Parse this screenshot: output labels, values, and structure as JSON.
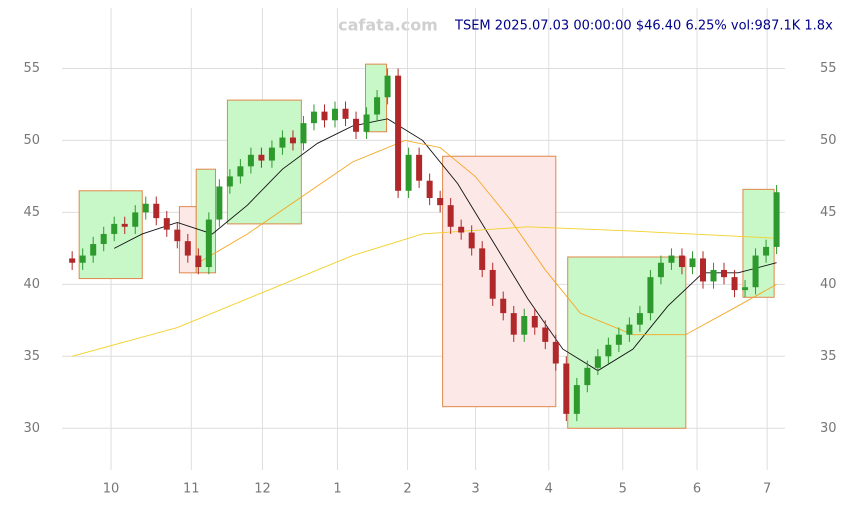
{
  "chart_data": {
    "type": "candlestick",
    "title": "TSEM 2025.07.03 00:00:00 $46.40 6.25% vol:987.1K 1.8x",
    "watermark": "cafata.com",
    "up_color": "#2e9a2e",
    "down_color": "#b0282a",
    "xlim": [
      -2.9,
      203.4
    ],
    "ylim": [
      27.1,
      59.2
    ],
    "grid": true,
    "xticks": [
      {
        "value": 11.1,
        "label": "10"
      },
      {
        "value": 34,
        "label": "11"
      },
      {
        "value": 54.3,
        "label": "12"
      },
      {
        "value": 75.7,
        "label": "1"
      },
      {
        "value": 95.7,
        "label": "2"
      },
      {
        "value": 115.1,
        "label": "3"
      },
      {
        "value": 136,
        "label": "4"
      },
      {
        "value": 157.1,
        "label": "5"
      },
      {
        "value": 178.3,
        "label": "6"
      },
      {
        "value": 198.3,
        "label": "7"
      }
    ],
    "yticks": [
      30,
      35,
      40,
      45,
      50,
      55
    ],
    "x": [
      0,
      3,
      6,
      9,
      12,
      15,
      18,
      21,
      24,
      27,
      30,
      33,
      36,
      39,
      42,
      45,
      48,
      51,
      54,
      57,
      60,
      63,
      66,
      69,
      72,
      75,
      78,
      81,
      84,
      87,
      90,
      93,
      96,
      99,
      102,
      105,
      108,
      111,
      114,
      117,
      120,
      123,
      126,
      129,
      132,
      135,
      138,
      141,
      144,
      147,
      150,
      153,
      156,
      159,
      162,
      165,
      168,
      171,
      174,
      177,
      180,
      183,
      186,
      189,
      192,
      195,
      198,
      201
    ],
    "open": [
      41.8,
      41.5,
      42.0,
      42.8,
      43.5,
      44.2,
      44.0,
      45.0,
      45.6,
      44.6,
      43.8,
      43.0,
      42.0,
      41.2,
      44.5,
      46.8,
      47.5,
      48.2,
      49.0,
      48.6,
      49.5,
      50.2,
      49.8,
      51.2,
      52.0,
      51.4,
      52.2,
      51.5,
      50.6,
      51.8,
      53.0,
      54.5,
      46.5,
      49.0,
      47.2,
      46.0,
      45.5,
      44.0,
      43.6,
      42.5,
      41.0,
      39.0,
      38.0,
      36.5,
      37.8,
      37.0,
      36.0,
      34.5,
      31.0,
      33.0,
      34.2,
      35.0,
      35.8,
      36.5,
      37.2,
      38.0,
      40.5,
      41.5,
      42.0,
      41.2,
      41.8,
      40.2,
      41.0,
      40.5,
      39.6,
      39.8,
      42.0,
      42.6
    ],
    "high": [
      42.3,
      42.5,
      43.3,
      44.0,
      44.7,
      44.7,
      45.5,
      46.1,
      46.1,
      45.1,
      44.3,
      43.5,
      42.5,
      45.0,
      47.3,
      48.0,
      48.7,
      49.5,
      49.5,
      50.0,
      50.7,
      50.7,
      51.7,
      52.5,
      52.5,
      52.7,
      52.7,
      52.0,
      52.3,
      53.5,
      55.0,
      55.0,
      49.5,
      49.5,
      47.7,
      46.5,
      46.0,
      44.5,
      44.1,
      43.0,
      41.5,
      39.5,
      38.5,
      38.3,
      38.3,
      37.5,
      36.5,
      35.0,
      33.5,
      34.7,
      35.5,
      36.3,
      37.0,
      37.7,
      38.5,
      41.0,
      42.0,
      42.5,
      42.5,
      42.3,
      42.3,
      41.5,
      41.5,
      41.0,
      40.3,
      42.5,
      43.1,
      46.9
    ],
    "low": [
      41.0,
      41.0,
      41.5,
      42.3,
      43.0,
      43.5,
      43.5,
      44.5,
      44.1,
      43.3,
      42.5,
      41.5,
      40.7,
      40.7,
      44.0,
      46.3,
      47.0,
      47.7,
      48.1,
      48.1,
      49.0,
      49.3,
      49.3,
      50.7,
      50.9,
      50.9,
      51.0,
      50.1,
      50.1,
      51.3,
      52.5,
      46.0,
      46.0,
      46.7,
      45.5,
      45.0,
      43.5,
      43.1,
      42.0,
      40.5,
      38.5,
      37.5,
      36.0,
      36.0,
      36.5,
      35.5,
      34.0,
      30.5,
      30.5,
      32.5,
      33.7,
      34.5,
      35.3,
      36.0,
      36.7,
      37.5,
      40.0,
      41.0,
      40.7,
      40.7,
      39.7,
      39.7,
      40.0,
      39.1,
      39.1,
      39.3,
      41.5,
      42.1
    ],
    "close": [
      41.5,
      42.0,
      42.8,
      43.5,
      44.2,
      44.0,
      45.0,
      45.6,
      44.6,
      43.8,
      43.0,
      42.0,
      41.2,
      44.5,
      46.8,
      47.5,
      48.2,
      49.0,
      48.6,
      49.5,
      50.2,
      49.8,
      51.2,
      52.0,
      51.4,
      52.2,
      51.5,
      50.6,
      51.8,
      53.0,
      54.5,
      46.5,
      49.0,
      47.2,
      46.0,
      45.5,
      44.0,
      43.6,
      42.5,
      41.0,
      39.0,
      38.0,
      36.5,
      37.8,
      37.0,
      36.0,
      34.5,
      31.0,
      33.0,
      34.2,
      35.0,
      35.8,
      36.5,
      37.2,
      38.0,
      40.5,
      41.5,
      42.0,
      41.2,
      41.8,
      40.2,
      41.0,
      40.5,
      39.6,
      39.8,
      42.0,
      42.6,
      46.4
    ],
    "lines": [
      {
        "color": "#111111",
        "x": [
          12,
          20,
          30,
          40,
          50,
          60,
          70,
          80,
          90,
          100,
          110,
          120,
          130,
          140,
          150,
          160,
          170,
          180,
          190,
          201
        ],
        "values": [
          42.5,
          43.5,
          44.3,
          43.5,
          45.5,
          48,
          49.8,
          51,
          51.5,
          50,
          47,
          43,
          39,
          35.5,
          34,
          35.5,
          38.5,
          40.8,
          40.8,
          41.5
        ]
      },
      {
        "color": "#f5a623",
        "x": [
          36,
          50,
          65,
          80,
          95,
          105,
          115,
          125,
          135,
          145,
          160,
          175,
          190,
          201
        ],
        "values": [
          41.5,
          43.5,
          46,
          48.5,
          50,
          49.5,
          47.5,
          44.5,
          41,
          38,
          36.5,
          36.5,
          38.5,
          40
        ]
      },
      {
        "color": "#f2d12a",
        "x": [
          0,
          30,
          55,
          80,
          100,
          130,
          160,
          201
        ],
        "values": [
          35,
          37,
          39.5,
          42,
          43.5,
          44,
          43.7,
          43.2
        ]
      }
    ],
    "boxes": [
      {
        "color": "#c8f7c8",
        "x": [
          2,
          20
        ],
        "y": [
          40.4,
          46.5
        ]
      },
      {
        "color": "#fde8e8",
        "x": [
          30.6,
          35.4
        ],
        "y": [
          40.8,
          45.4
        ]
      },
      {
        "color": "#c8f7c8",
        "x": [
          35.4,
          40.9
        ],
        "y": [
          40.8,
          48
        ]
      },
      {
        "color": "#c8f7c8",
        "x": [
          44.3,
          65.4
        ],
        "y": [
          44.2,
          52.8
        ]
      },
      {
        "color": "#c8f7c8",
        "x": [
          83.7,
          89.7
        ],
        "y": [
          50.6,
          55.3
        ]
      },
      {
        "color": "#fde8e8",
        "x": [
          105.7,
          138
        ],
        "y": [
          31.5,
          48.9
        ]
      },
      {
        "color": "#c8f7c8",
        "x": [
          141.4,
          175.1
        ],
        "y": [
          30,
          41.9
        ]
      },
      {
        "color": "#c8f7c8",
        "x": [
          191.4,
          200.3
        ],
        "y": [
          39.1,
          46.6
        ]
      }
    ]
  }
}
